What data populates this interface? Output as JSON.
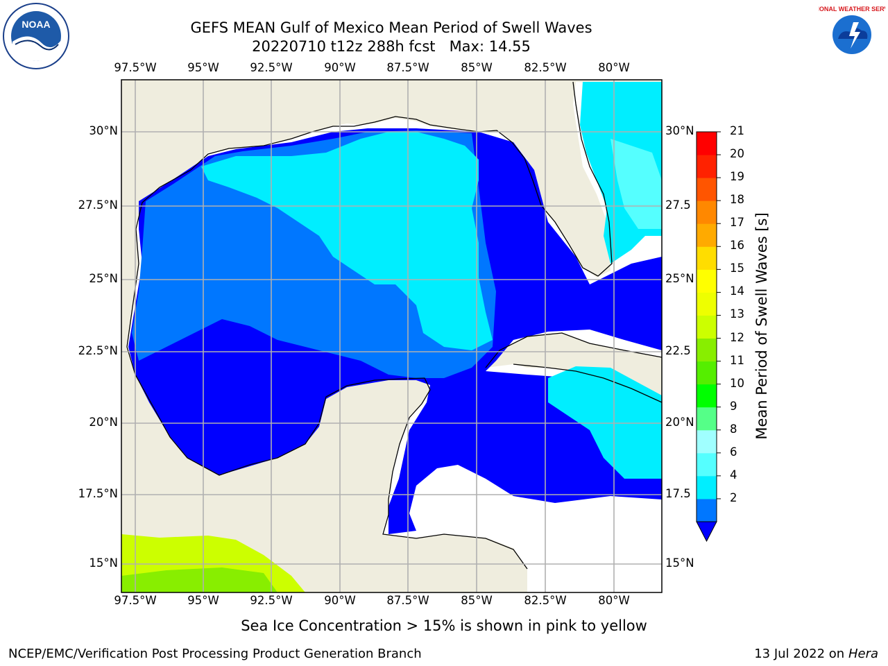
{
  "title": {
    "line1": "GEFS MEAN Gulf of Mexico Mean Period of Swell Waves",
    "line2_run": "20220710 t12z 288h fcst",
    "line2_max": "Max: 14.55"
  },
  "map": {
    "lon_ticks": [
      "97.5°W",
      "95°W",
      "92.5°W",
      "90°W",
      "87.5°W",
      "85°W",
      "82.5°W",
      "80°W"
    ],
    "lat_ticks_left": [
      "30°N",
      "27.5°N",
      "25°N",
      "22.5°N",
      "20°N",
      "17.5°N",
      "15°N"
    ],
    "lat_ticks_right": [
      "30°N",
      "27.5",
      "25°N",
      "22.5",
      "20°N",
      "17.5",
      "15°N"
    ],
    "land_color": "#efedde",
    "grid_color": "#b0b0b0"
  },
  "colorbar": {
    "label": "Mean Period of Swell Waves [s]",
    "ticks": [
      "21",
      "20",
      "19",
      "18",
      "17",
      "16",
      "15",
      "14",
      "13",
      "12",
      "11",
      "10",
      "9",
      "8",
      "6",
      "4",
      "2"
    ],
    "colors": [
      "#0000ff",
      "#0077ff",
      "#00eeff",
      "#55ffff",
      "#a0ffff",
      "#55ff88",
      "#00ff00",
      "#55ee00",
      "#88ee00",
      "#ccff00",
      "#eeff00",
      "#ffff00",
      "#ffdd00",
      "#ffaa00",
      "#ff8800",
      "#ff5500",
      "#ff2200",
      "#ff0000"
    ]
  },
  "footer": {
    "caption": "Sea Ice Concentration > 15% is shown in pink to yellow",
    "credit": "NCEP/EMC/Verification Post Processing Product Generation Branch",
    "date_prefix": "13 Jul 2022 on ",
    "date_host": "Hera"
  },
  "logos": {
    "left": "noaa-logo",
    "left_text": "NOAA",
    "right": "nws-logo",
    "right_text": "NATIONAL WEATHER SERVICE"
  }
}
